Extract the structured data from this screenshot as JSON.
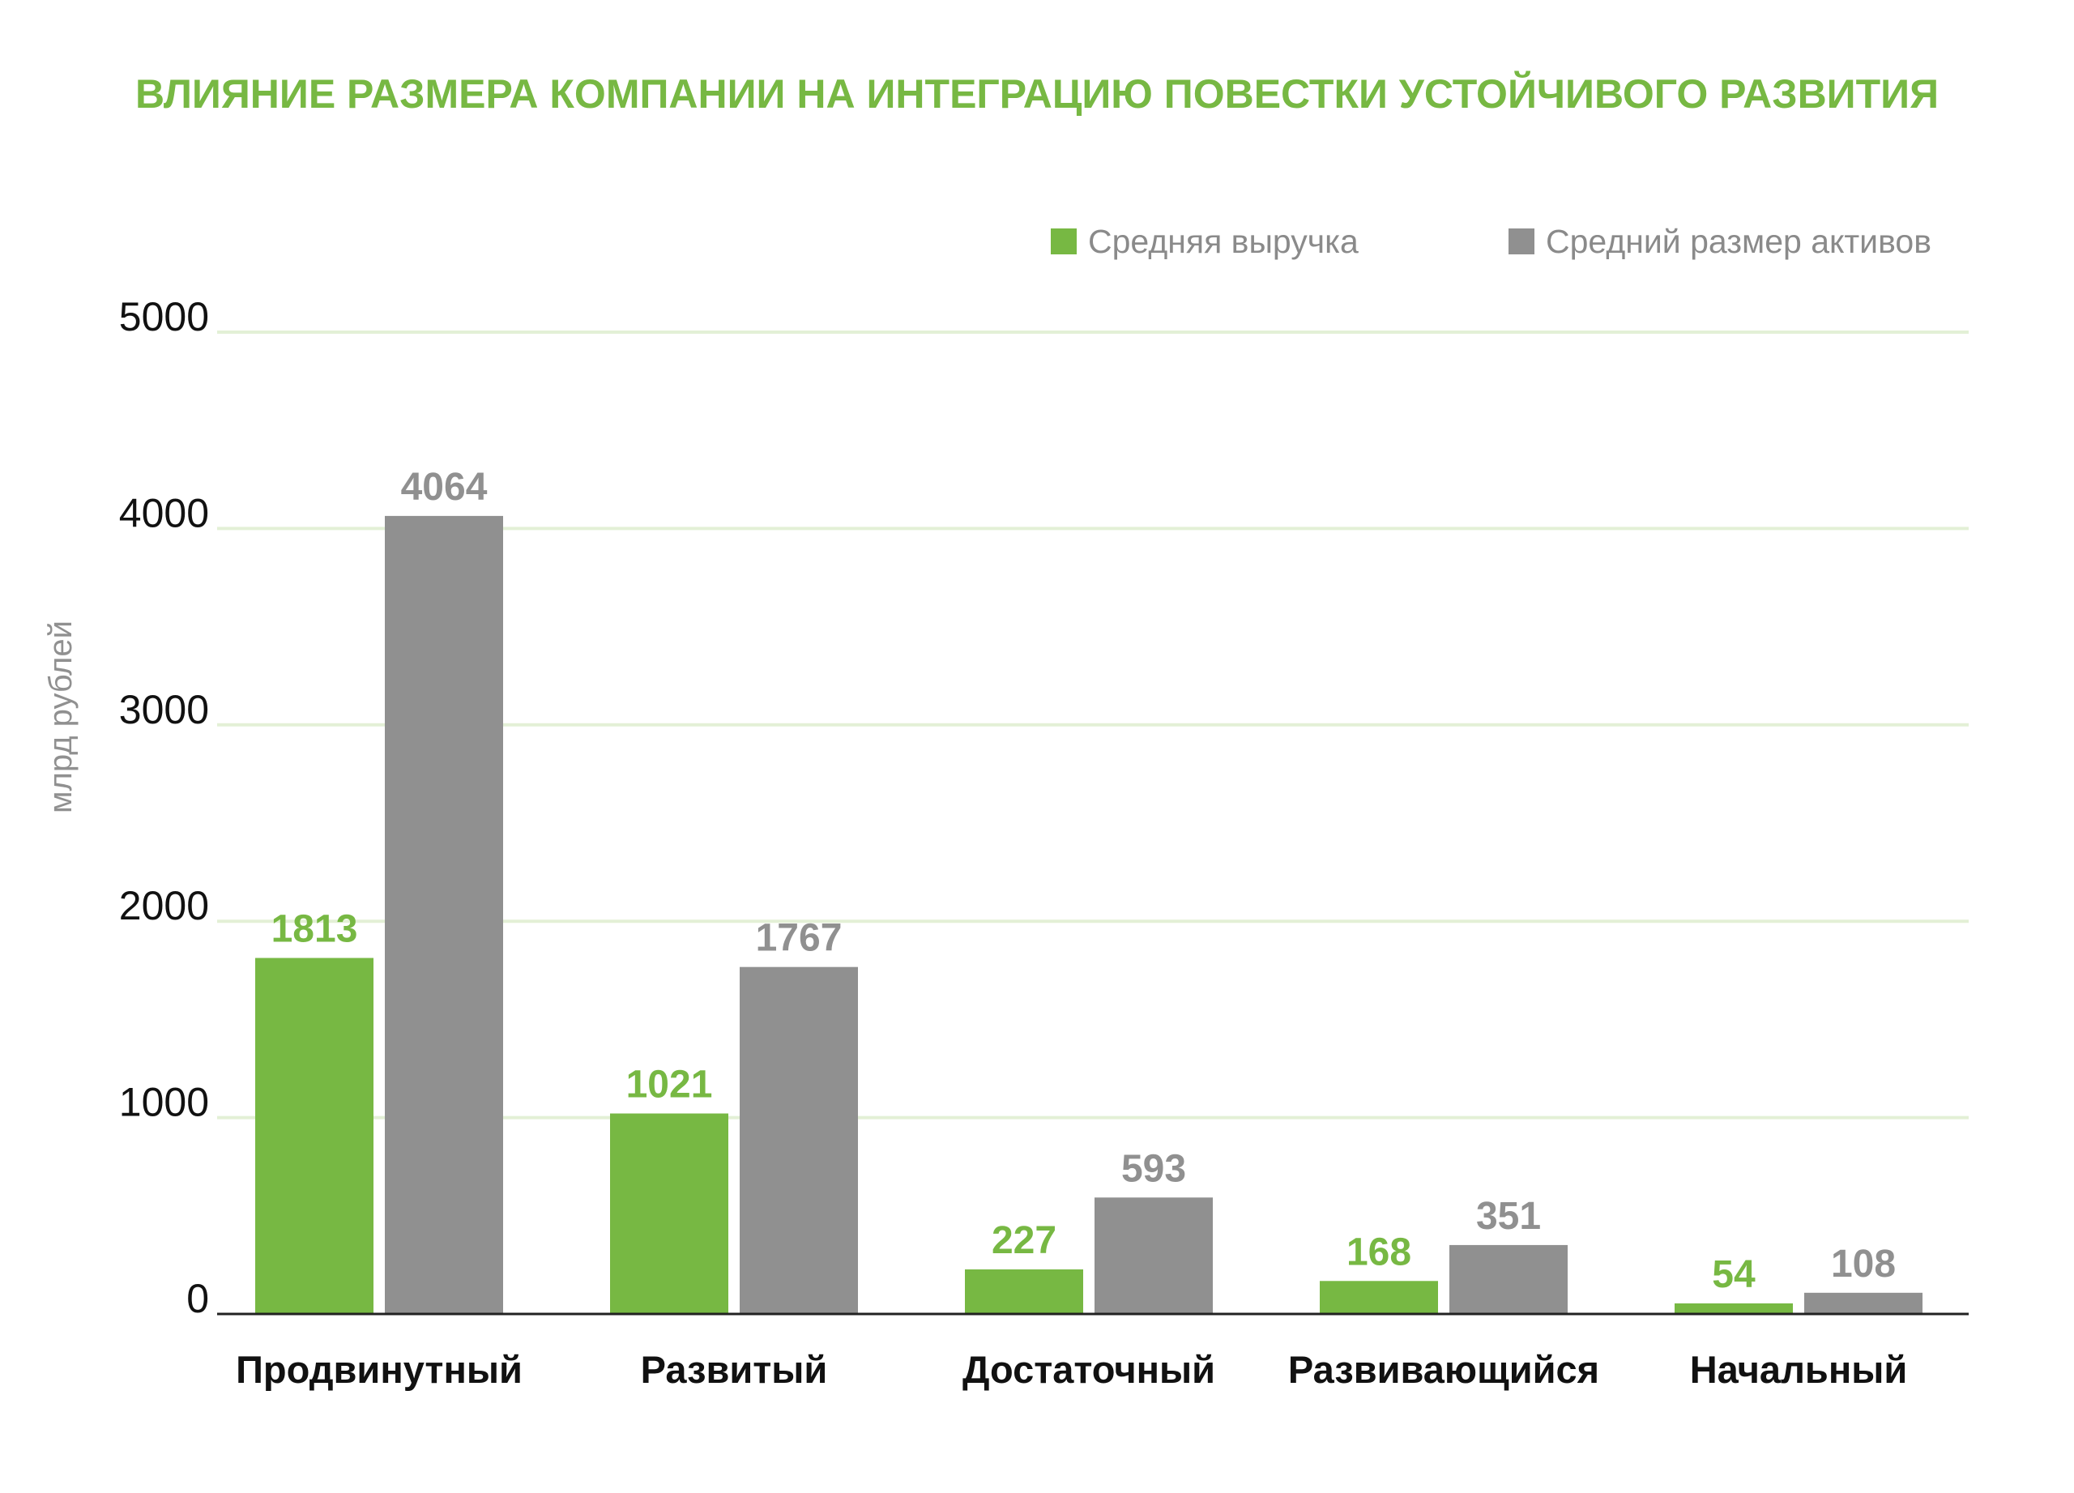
{
  "chart_data": {
    "type": "bar",
    "title": "ВЛИЯНИЕ РАЗМЕРА КОМПАНИИ НА ИНТЕГРАЦИЮ ПОВЕСТКИ УСТОЙЧИВОГО РАЗВИТИЯ",
    "ylabel": "млрд рублей",
    "xlabel": "",
    "ylim": [
      0,
      5000
    ],
    "yticks": [
      0,
      1000,
      2000,
      3000,
      4000,
      5000
    ],
    "grid": true,
    "legend_position": "top-right",
    "categories": [
      "Продвинутный",
      "Развитый",
      "Достаточный",
      "Развивающийся",
      "Начальный"
    ],
    "series": [
      {
        "name": "Средняя выручка",
        "color": "#77b843",
        "values": [
          1813,
          1021,
          227,
          168,
          54
        ]
      },
      {
        "name": "Средний размер активов",
        "color": "#909090",
        "values": [
          4064,
          1767,
          593,
          351,
          108
        ]
      }
    ]
  },
  "colors": {
    "title": "#77b843",
    "gridline": "#e3f0d6",
    "axis": "#222222",
    "ylabel": "#909090",
    "legend_text": "#8a8a8a"
  }
}
